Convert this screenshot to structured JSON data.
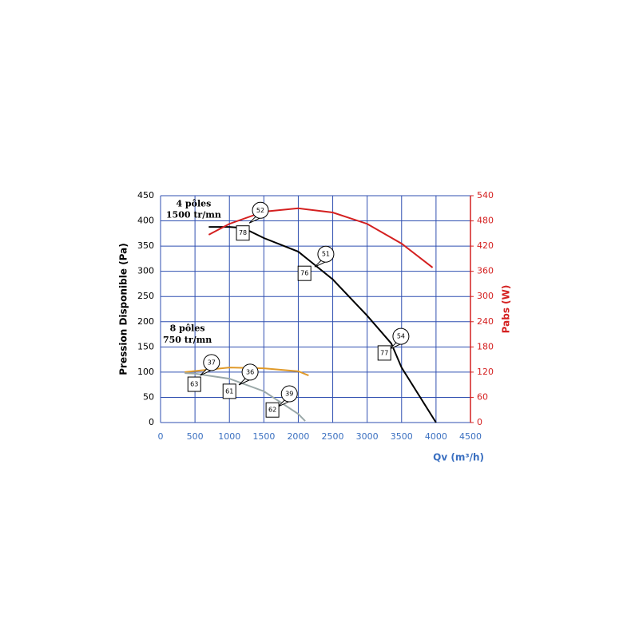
{
  "chart_data": {
    "type": "line",
    "xlabel": "Qv (m³/h)",
    "ylabel": "Pression Disponible (Pa)",
    "y2label": "Pabs (W)",
    "xlim": [
      0,
      4500
    ],
    "xticks": [
      0,
      500,
      1000,
      1500,
      2000,
      2500,
      3000,
      3500,
      4000,
      4500
    ],
    "ylim": [
      0,
      450
    ],
    "yticks": [
      0,
      50,
      100,
      150,
      200,
      250,
      300,
      350,
      400,
      450
    ],
    "y2lim": [
      0,
      540
    ],
    "y2ticks": [
      0,
      60,
      120,
      180,
      240,
      300,
      360,
      420,
      480,
      540
    ],
    "grid": true,
    "grid_color": "#2f4fb0",
    "y2_color": "#d42020",
    "x_color": "#3a6fc0",
    "series": [
      {
        "color": "#000000",
        "x": [
          700,
          1000,
          1200,
          1500,
          2000,
          2500,
          3000,
          3350,
          3500,
          4000
        ],
        "values": [
          388,
          388,
          386,
          366,
          339,
          284,
          212,
          157,
          109,
          0
        ]
      },
      {
        "color": "#d42020",
        "axis": "y2",
        "x": [
          700,
          1000,
          1500,
          2000,
          2500,
          3000,
          3500,
          3950
        ],
        "values": [
          447,
          473,
          502,
          510,
          500,
          473,
          426,
          369
        ]
      },
      {
        "color": "#e09a2a",
        "axis": "y2",
        "x": [
          350,
          1000,
          1500,
          2000,
          2150
        ],
        "values": [
          120,
          131,
          129,
          122,
          112
        ]
      },
      {
        "color": "#9aa8a8",
        "x": [
          350,
          500,
          1000,
          1500,
          2000,
          2100
        ],
        "values": [
          98,
          97,
          87,
          62,
          17,
          3
        ]
      }
    ],
    "annotations": [
      {
        "text": "4 pôles",
        "x": 480,
        "y": 433
      },
      {
        "text": "1500 tr/mn",
        "x": 480,
        "y": 411
      },
      {
        "text": "8 pôles",
        "x": 390,
        "y": 186
      },
      {
        "text": "750 tr/mn",
        "x": 390,
        "y": 163
      }
    ],
    "circle_labels": [
      {
        "text": "52",
        "x": 1450,
        "y": 421
      },
      {
        "text": "51",
        "x": 2400,
        "y": 334
      },
      {
        "text": "54",
        "x": 3490,
        "y": 171
      },
      {
        "text": "37",
        "x": 740,
        "y": 119
      },
      {
        "text": "36",
        "x": 1300,
        "y": 100
      },
      {
        "text": "39",
        "x": 1870,
        "y": 57
      }
    ],
    "box_labels": [
      {
        "text": "78",
        "x": 1195,
        "y": 376
      },
      {
        "text": "76",
        "x": 2090,
        "y": 296
      },
      {
        "text": "77",
        "x": 3250,
        "y": 138
      },
      {
        "text": "63",
        "x": 490,
        "y": 76
      },
      {
        "text": "61",
        "x": 1000,
        "y": 62
      },
      {
        "text": "62",
        "x": 1625,
        "y": 25
      }
    ]
  }
}
